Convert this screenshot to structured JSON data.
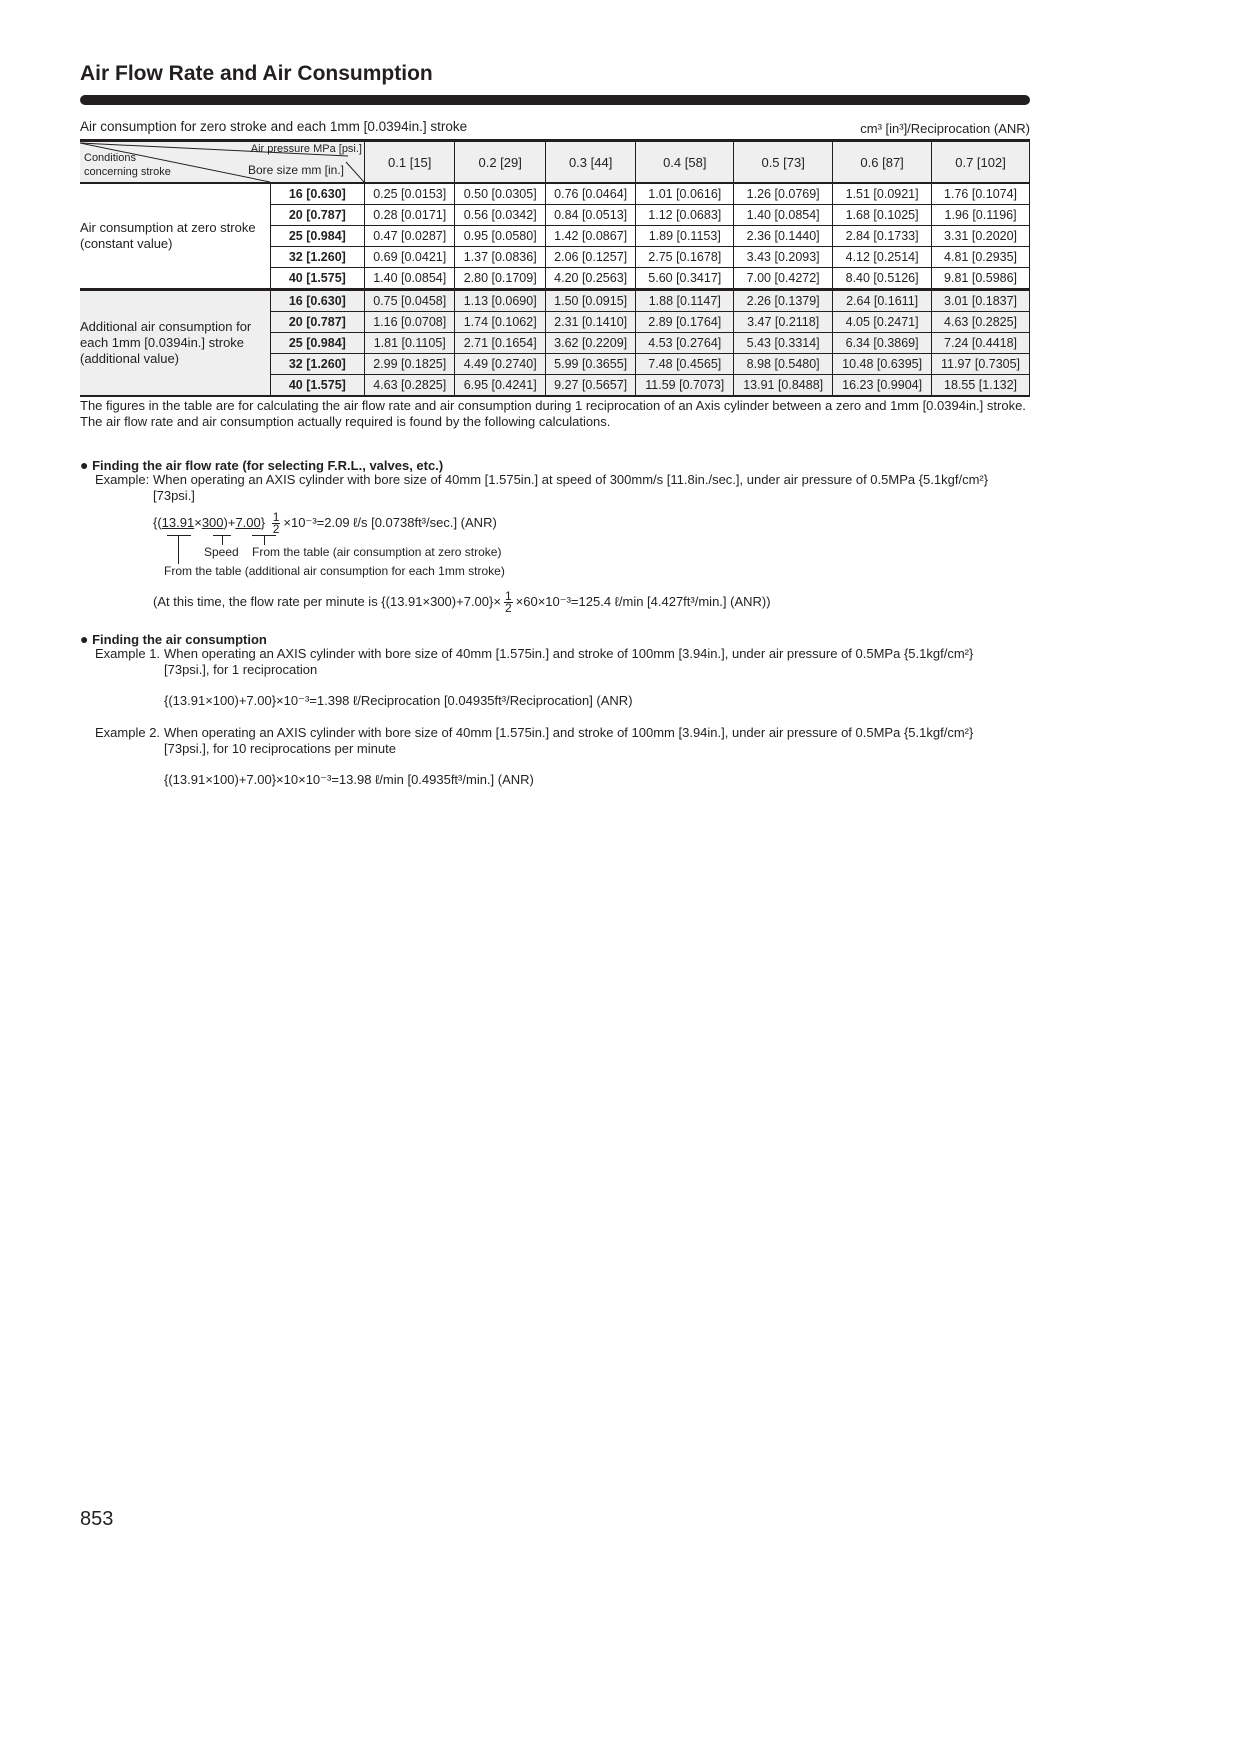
{
  "title": "Air Flow Rate and Air Consumption",
  "table": {
    "caption": "Air consumption for zero stroke and each 1mm [0.0394in.] stroke",
    "unit": "cm³ [in³]/Reciprocation (ANR)",
    "corner": {
      "top": "Air pressure MPa [psi.]",
      "middle": "Bore size mm [in.]",
      "left": "Conditions concerning stroke"
    },
    "pressures": [
      "0.1 [15]",
      "0.2 [29]",
      "0.3 [44]",
      "0.4 [58]",
      "0.5 [73]",
      "0.6 [87]",
      "0.7 [102]"
    ],
    "sections": [
      {
        "label": "Air consumption at zero stroke (constant value)",
        "rows": [
          {
            "bore": "16 [0.630]",
            "values": [
              "0.25 [0.0153]",
              "0.50 [0.0305]",
              "0.76 [0.0464]",
              "1.01 [0.0616]",
              "1.26 [0.0769]",
              "1.51 [0.0921]",
              "1.76 [0.1074]"
            ]
          },
          {
            "bore": "20 [0.787]",
            "values": [
              "0.28 [0.0171]",
              "0.56 [0.0342]",
              "0.84 [0.0513]",
              "1.12 [0.0683]",
              "1.40 [0.0854]",
              "1.68 [0.1025]",
              "1.96 [0.1196]"
            ]
          },
          {
            "bore": "25 [0.984]",
            "values": [
              "0.47 [0.0287]",
              "0.95 [0.0580]",
              "1.42 [0.0867]",
              "1.89 [0.1153]",
              "2.36 [0.1440]",
              "2.84 [0.1733]",
              "3.31 [0.2020]"
            ]
          },
          {
            "bore": "32 [1.260]",
            "values": [
              "0.69 [0.0421]",
              "1.37 [0.0836]",
              "2.06 [0.1257]",
              "2.75 [0.1678]",
              "3.43 [0.2093]",
              "4.12 [0.2514]",
              "4.81 [0.2935]"
            ]
          },
          {
            "bore": "40 [1.575]",
            "values": [
              "1.40 [0.0854]",
              "2.80 [0.1709]",
              "4.20 [0.2563]",
              "5.60 [0.3417]",
              "7.00 [0.4272]",
              "8.40 [0.5126]",
              "9.81 [0.5986]"
            ]
          }
        ]
      },
      {
        "label": "Additional air consumption for each 1mm [0.0394in.] stroke (additional value)",
        "rows": [
          {
            "bore": "16 [0.630]",
            "values": [
              "0.75 [0.0458]",
              "1.13 [0.0690]",
              "1.50 [0.0915]",
              "1.88 [0.1147]",
              "2.26 [0.1379]",
              "2.64 [0.1611]",
              "3.01 [0.1837]"
            ]
          },
          {
            "bore": "20 [0.787]",
            "values": [
              "1.16 [0.0708]",
              "1.74 [0.1062]",
              "2.31 [0.1410]",
              "2.89 [0.1764]",
              "3.47 [0.2118]",
              "4.05 [0.2471]",
              "4.63 [0.2825]"
            ]
          },
          {
            "bore": "25 [0.984]",
            "values": [
              "1.81 [0.1105]",
              "2.71 [0.1654]",
              "3.62 [0.2209]",
              "4.53 [0.2764]",
              "5.43 [0.3314]",
              "6.34 [0.3869]",
              "7.24 [0.4418]"
            ]
          },
          {
            "bore": "32 [1.260]",
            "values": [
              "2.99 [0.1825]",
              "4.49 [0.2740]",
              "5.99 [0.3655]",
              "7.48 [0.4565]",
              "8.98 [0.5480]",
              "10.48 [0.6395]",
              "11.97 [0.7305]"
            ]
          },
          {
            "bore": "40 [1.575]",
            "values": [
              "4.63 [0.2825]",
              "6.95 [0.4241]",
              "9.27 [0.5657]",
              "11.59 [0.7073]",
              "13.91 [0.8488]",
              "16.23 [0.9904]",
              "18.55 [1.132]"
            ]
          }
        ]
      }
    ]
  },
  "notes": [
    "The figures in the table are for calculating the air flow rate and air consumption during 1 reciprocation of an Axis cylinder between a zero and 1mm [0.0394in.] stroke.",
    "The air flow rate and air consumption actually required is found by the following calculations."
  ],
  "flow_rate": {
    "heading": "Finding the air flow rate (for selecting F.R.L., valves, etc.)",
    "example_label": "Example:",
    "example_text": "When operating an AXIS cylinder with bore size of 40mm [1.575in.] at speed of 300mm/s [11.8in./sec.], under air pressure of 0.5MPa {5.1kgf/cm²}",
    "example_text2": "[73psi.]",
    "formula": {
      "open": "{(",
      "a": "13.91",
      "x1": "×",
      "b": "300",
      "plus": ")+",
      "c": "7.00",
      "close": "}",
      "num": "1",
      "den": "2",
      "rest": "×10⁻³=2.09 ℓ/s [0.0738ft³/sec.] (ANR)"
    },
    "label_speed": "Speed",
    "label_zero": "From the table (air consumption at zero stroke)",
    "label_additional": "From the table (additional air consumption for each 1mm stroke)",
    "per_minute": {
      "pre": "(At this time, the flow rate per minute is {(13.91×300)+7.00}×",
      "num": "1",
      "den": "2",
      "post": "×60×10⁻³=125.4 ℓ/min [4.427ft³/min.] (ANR))"
    }
  },
  "consumption": {
    "heading": "Finding the air consumption",
    "example1_label": "Example 1.",
    "example1_text": "When operating an AXIS cylinder with bore size of 40mm [1.575in.] and stroke of 100mm [3.94in.], under air pressure of 0.5MPa {5.1kgf/cm²}",
    "example1_text2": "[73psi.], for 1 reciprocation",
    "example1_formula": "{(13.91×100)+7.00}×10⁻³=1.398 ℓ/Reciprocation [0.04935ft³/Reciprocation] (ANR)",
    "example2_label": "Example 2.",
    "example2_text": "When operating an AXIS cylinder with bore size of 40mm [1.575in.] and stroke of 100mm [3.94in.], under air pressure of 0.5MPa {5.1kgf/cm²}",
    "example2_text2": "[73psi.], for 10 reciprocations per minute",
    "example2_formula": "{(13.91×100)+7.00}×10×10⁻³=13.98 ℓ/min [0.4935ft³/min.] (ANR)"
  },
  "page_number": "853",
  "colors": {
    "text": "#231f20",
    "shade": "#efefef"
  }
}
